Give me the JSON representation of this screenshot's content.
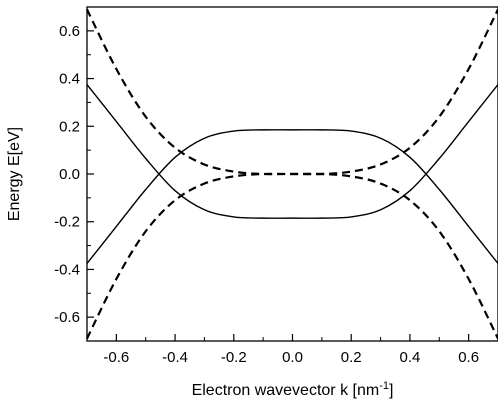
{
  "chart_data": {
    "type": "line",
    "title": "",
    "xlabel": "Electron wavevector k [nm",
    "xlabel_sup": "-1",
    "xlabel_end": "]",
    "ylabel": "Energy E[eV]",
    "xlim": [
      -0.7,
      0.7
    ],
    "ylim": [
      -0.7,
      0.7
    ],
    "x_ticks": [
      "-0.6",
      "-0.4",
      "-0.2",
      "0.0",
      "0.2",
      "0.4",
      "0.6"
    ],
    "y_ticks": [
      "-0.6",
      "-0.4",
      "-0.2",
      "0.0",
      "0.2",
      "0.4",
      "0.6"
    ],
    "grid": false,
    "legend": "none",
    "line_color": "#000000",
    "series": [
      {
        "style": "solid",
        "x": [
          -0.7,
          -0.6,
          -0.5,
          -0.4,
          -0.3,
          -0.2,
          -0.1,
          0.0,
          0.1,
          0.2,
          0.3,
          0.4,
          0.5,
          0.6,
          0.7
        ],
        "y": [
          -0.375,
          -0.22,
          -0.065,
          0.07,
          0.15,
          0.18,
          0.185,
          0.185,
          0.185,
          0.18,
          0.15,
          0.07,
          -0.065,
          -0.22,
          -0.375
        ]
      },
      {
        "style": "solid",
        "x": [
          -0.7,
          -0.6,
          -0.5,
          -0.4,
          -0.3,
          -0.2,
          -0.1,
          0.0,
          0.1,
          0.2,
          0.3,
          0.4,
          0.5,
          0.6,
          0.7
        ],
        "y": [
          0.375,
          0.22,
          0.065,
          -0.07,
          -0.15,
          -0.18,
          -0.185,
          -0.185,
          -0.185,
          -0.18,
          -0.15,
          -0.07,
          0.065,
          0.22,
          0.375
        ]
      },
      {
        "style": "dashed",
        "x": [
          -0.7,
          -0.6,
          -0.5,
          -0.4,
          -0.3,
          -0.2,
          -0.1,
          0.0,
          0.1,
          0.2,
          0.3,
          0.4,
          0.5,
          0.6,
          0.7
        ],
        "y": [
          0.69,
          0.44,
          0.24,
          0.11,
          0.04,
          0.01,
          0.0,
          0.0,
          0.0,
          0.01,
          0.04,
          0.11,
          0.24,
          0.44,
          0.69
        ]
      },
      {
        "style": "dashed",
        "x": [
          -0.7,
          -0.6,
          -0.5,
          -0.4,
          -0.3,
          -0.2,
          -0.1,
          0.0,
          0.1,
          0.2,
          0.3,
          0.4,
          0.5,
          0.6,
          0.7
        ],
        "y": [
          -0.69,
          -0.44,
          -0.24,
          -0.11,
          -0.04,
          -0.01,
          0.0,
          0.0,
          0.0,
          -0.01,
          -0.04,
          -0.11,
          -0.24,
          -0.44,
          -0.69
        ]
      }
    ]
  }
}
